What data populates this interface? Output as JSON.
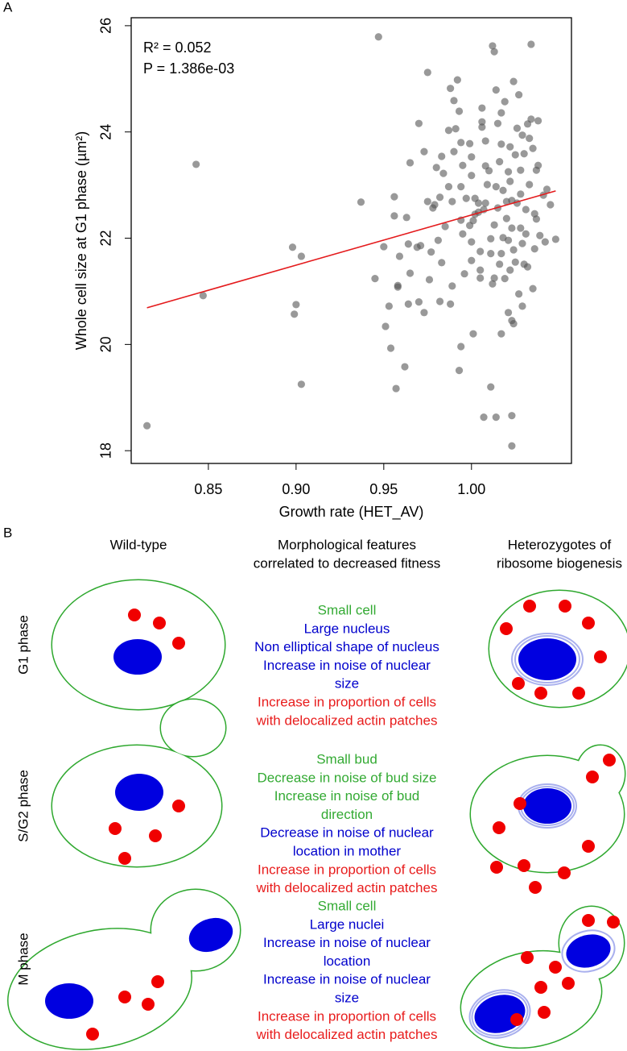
{
  "chart_data": {
    "type": "scatter",
    "panel_label": "A",
    "xlabel": "Growth rate (HET_AV)",
    "ylabel": "Whole cell size at G1 phase (µm²)",
    "annotations": [
      "R² = 0.052",
      "P = 1.386e-03"
    ],
    "color": "#555555",
    "x": [
      0.815,
      0.843,
      0.847,
      0.899,
      0.9,
      0.898,
      0.903,
      0.903,
      0.937,
      0.945,
      0.947,
      0.95,
      0.951,
      0.953,
      0.954,
      0.956,
      0.956,
      0.957,
      0.958,
      0.959,
      0.958,
      0.964,
      0.963,
      0.965,
      0.965,
      0.969,
      0.97,
      0.97,
      0.971,
      0.973,
      0.973,
      0.975,
      0.975,
      0.976,
      0.978,
      0.977,
      0.979,
      0.98,
      0.981,
      0.982,
      0.983,
      0.983,
      0.984,
      0.985,
      0.987,
      0.987,
      0.988,
      0.988,
      0.989,
      0.989,
      0.99,
      0.99,
      0.991,
      0.992,
      0.993,
      0.993,
      0.994,
      0.994,
      0.995,
      0.995,
      0.996,
      0.997,
      0.999,
      0.999,
      1.0,
      1.0,
      1.0,
      1.0,
      1.001,
      1.002,
      1.002,
      1.004,
      1.005,
      1.005,
      1.006,
      1.006,
      1.006,
      1.007,
      1.008,
      1.008,
      1.008,
      1.009,
      1.01,
      1.011,
      1.011,
      1.011,
      1.012,
      1.012,
      1.013,
      1.013,
      1.014,
      1.014,
      1.015,
      1.015,
      1.016,
      1.016,
      1.017,
      1.017,
      1.017,
      1.018,
      1.018,
      1.019,
      1.019,
      1.02,
      1.02,
      1.021,
      1.021,
      1.022,
      1.022,
      1.022,
      1.023,
      1.023,
      1.024,
      1.024,
      1.025,
      1.025,
      1.026,
      1.026,
      1.027,
      1.027,
      1.028,
      1.028,
      1.028,
      1.029,
      1.029,
      1.03,
      1.03,
      1.031,
      1.031,
      1.032,
      1.032,
      1.033,
      1.033,
      1.034,
      1.034,
      1.035,
      1.035,
      1.036,
      1.036,
      1.037,
      1.037,
      1.038,
      1.038,
      1.039,
      1.041,
      1.042,
      1.043,
      1.045,
      1.048,
      1.001,
      1.004,
      1.005,
      1.007,
      1.014,
      1.023,
      1.023,
      1.023,
      1.017,
      1.029,
      1.024,
      1.021,
      1.013,
      0.994,
      0.982,
      0.994,
      0.964,
      0.962
    ],
    "values": [
      18.47,
      23.39,
      20.92,
      20.57,
      20.75,
      21.83,
      21.66,
      19.25,
      22.68,
      21.24,
      25.79,
      21.84,
      20.34,
      20.72,
      19.93,
      22.78,
      22.42,
      19.17,
      21.08,
      21.66,
      21.11,
      21.89,
      22.39,
      21.34,
      23.42,
      21.83,
      24.16,
      20.8,
      21.86,
      23.63,
      20.6,
      22.69,
      25.12,
      21.22,
      22.57,
      21.74,
      22.63,
      23.33,
      21.96,
      22.77,
      21.54,
      23.54,
      23.22,
      22.22,
      24.03,
      22.97,
      20.76,
      24.82,
      22.69,
      21.1,
      23.63,
      24.59,
      24.06,
      24.98,
      24.39,
      19.51,
      22.34,
      22.97,
      22.08,
      23.37,
      21.33,
      22.75,
      22.24,
      23.78,
      23.18,
      23.53,
      21.93,
      21.58,
      22.33,
      22.75,
      22.45,
      22.49,
      21.75,
      21.4,
      24.19,
      24.45,
      24.09,
      22.54,
      22.66,
      23.36,
      23.83,
      23.01,
      23.27,
      21.71,
      19.2,
      21.99,
      21.14,
      25.62,
      22.25,
      21.25,
      24.79,
      22.97,
      24.16,
      22.57,
      21.51,
      23.44,
      21.71,
      23.77,
      24.36,
      22.01,
      22.9,
      24.57,
      21.24,
      22.69,
      22.37,
      23.25,
      21.96,
      23.07,
      21.4,
      23.72,
      22.19,
      22.71,
      24.95,
      21.78,
      23.57,
      21.55,
      24.07,
      22.66,
      20.95,
      24.7,
      22.19,
      23.28,
      22.83,
      21.9,
      23.94,
      21.51,
      23.59,
      22.08,
      22.54,
      24.15,
      21.46,
      23.88,
      23.01,
      25.65,
      24.24,
      21.05,
      23.69,
      22.46,
      21.8,
      23.28,
      22.36,
      24.21,
      23.37,
      22.05,
      22.81,
      21.93,
      22.92,
      22.63,
      21.98,
      20.2,
      22.66,
      21.25,
      18.63,
      18.63,
      18.66,
      18.09,
      20.45,
      20.2,
      20.72,
      20.39,
      20.6,
      25.51,
      23.8,
      20.81,
      19.96,
      20.76,
      19.58
    ],
    "fit": {
      "x": [
        0.815,
        1.048
      ],
      "values": [
        20.69,
        22.89
      ],
      "color": "#e41a1c"
    },
    "xlim": [
      0.806,
      1.057
    ],
    "ylim": [
      17.76,
      26.15
    ],
    "xticks": [
      {
        "value": 0.85,
        "label": "0.85"
      },
      {
        "value": 0.9,
        "label": "0.90"
      },
      {
        "value": 0.95,
        "label": "0.95"
      },
      {
        "value": 1.0,
        "label": "1.00"
      }
    ],
    "yticks": [
      18,
      20,
      22,
      24,
      26
    ]
  },
  "panel_b": {
    "label": "B",
    "columns": [
      [
        "Wild-type"
      ],
      [
        "Morphological features",
        "correlated to decreased fitness"
      ],
      [
        "Heterozygotes of",
        "ribosome biogenesis"
      ]
    ],
    "rows": [
      {
        "label": "G1 phase",
        "features": [
          {
            "text": "Small cell",
            "color": "#33aa33"
          },
          {
            "text": "Large nucleus",
            "color": "#0000cc"
          },
          {
            "text": "Non elliptical shape of nucleus",
            "color": "#0000cc"
          },
          {
            "text": "Increase in noise of nuclear",
            "color": "#0000cc"
          },
          {
            "text": "size",
            "color": "#0000cc"
          },
          {
            "text": "Increase in proportion of cells",
            "color": "#e81c1c"
          },
          {
            "text": "with delocalized actin patches",
            "color": "#e81c1c"
          }
        ]
      },
      {
        "label": "S/G2 phase",
        "features": [
          {
            "text": "Small bud",
            "color": "#33aa33"
          },
          {
            "text": "Decrease in noise of bud size",
            "color": "#33aa33"
          },
          {
            "text": "Increase in noise of bud",
            "color": "#33aa33"
          },
          {
            "text": "direction",
            "color": "#33aa33"
          },
          {
            "text": "Decrease in noise of nuclear",
            "color": "#0000cc"
          },
          {
            "text": "location in mother",
            "color": "#0000cc"
          },
          {
            "text": "Increase in proportion of cells",
            "color": "#e81c1c"
          },
          {
            "text": "with delocalized actin patches",
            "color": "#e81c1c"
          }
        ]
      },
      {
        "label": "M phase",
        "features": [
          {
            "text": "Small cell",
            "color": "#33aa33"
          },
          {
            "text": "Large nuclei",
            "color": "#0000cc"
          },
          {
            "text": "Increase in noise of nuclear",
            "color": "#0000cc"
          },
          {
            "text": "location",
            "color": "#0000cc"
          },
          {
            "text": "Increase in noise of nuclear",
            "color": "#0000cc"
          },
          {
            "text": "size",
            "color": "#0000cc"
          },
          {
            "text": "Increase in proportion of cells",
            "color": "#e81c1c"
          },
          {
            "text": "with delocalized actin patches",
            "color": "#e81c1c"
          }
        ]
      }
    ]
  }
}
